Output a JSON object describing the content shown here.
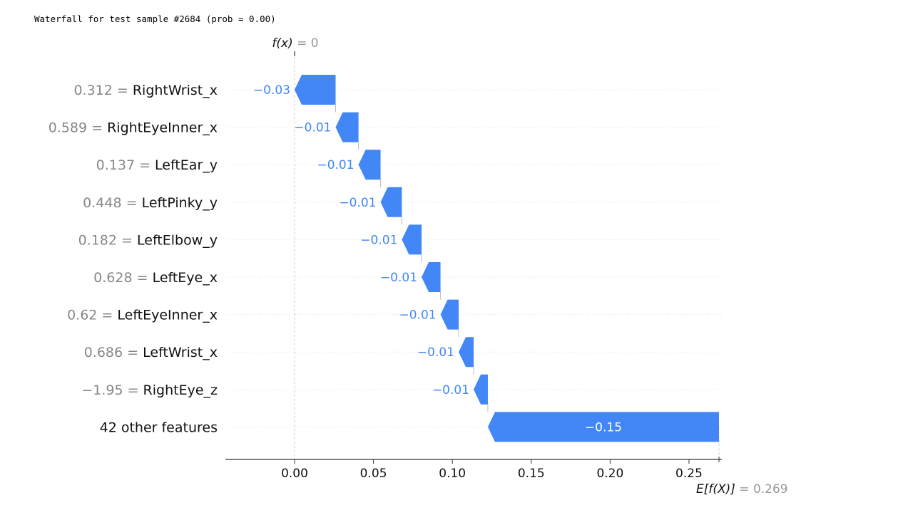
{
  "header": {
    "text": "Waterfall for test sample #2684 (prob = 0.00)"
  },
  "chart_data": {
    "type": "waterfall",
    "title": "",
    "xlabel": "",
    "ylabel": "",
    "base_value": 0.269,
    "fx": 0,
    "xlim": [
      -0.044,
      0.272
    ],
    "xticks": [
      0.0,
      0.05,
      0.1,
      0.15,
      0.2,
      0.25
    ],
    "xtick_labels": [
      "0.00",
      "0.05",
      "0.10",
      "0.15",
      "0.20",
      "0.25"
    ],
    "fx_label": "f(x)",
    "fx_value_text": "= 0",
    "ex_label": "E[f(X)]",
    "ex_value_text": "= 0.269",
    "negative_color": "#4287f5",
    "grid": "dotted horizontal",
    "features": [
      {
        "value_text": "0.312",
        "name": "RightWrist_x",
        "label": "−0.03",
        "start": 0.026,
        "end": 0.0
      },
      {
        "value_text": "0.589",
        "name": "RightEyeInner_x",
        "label": "−0.01",
        "start": 0.0405,
        "end": 0.026
      },
      {
        "value_text": "0.137",
        "name": "LeftEar_y",
        "label": "−0.01",
        "start": 0.0545,
        "end": 0.0405
      },
      {
        "value_text": "0.448",
        "name": "LeftPinky_y",
        "label": "−0.01",
        "start": 0.068,
        "end": 0.0545
      },
      {
        "value_text": "0.182",
        "name": "LeftElbow_y",
        "label": "−0.01",
        "start": 0.0805,
        "end": 0.068
      },
      {
        "value_text": "0.628",
        "name": "LeftEye_x",
        "label": "−0.01",
        "start": 0.0925,
        "end": 0.0805
      },
      {
        "value_text": "0.62",
        "name": "LeftEyeInner_x",
        "label": "−0.01",
        "start": 0.104,
        "end": 0.0925
      },
      {
        "value_text": "0.686",
        "name": "LeftWrist_x",
        "label": "−0.01",
        "start": 0.1135,
        "end": 0.104
      },
      {
        "value_text": "−1.95",
        "name": "RightEye_z",
        "label": "−0.01",
        "start": 0.1225,
        "end": 0.1135
      },
      {
        "value_text": "",
        "name": "42 other features",
        "label": "−0.15",
        "start": 0.269,
        "end": 0.1225
      }
    ]
  }
}
